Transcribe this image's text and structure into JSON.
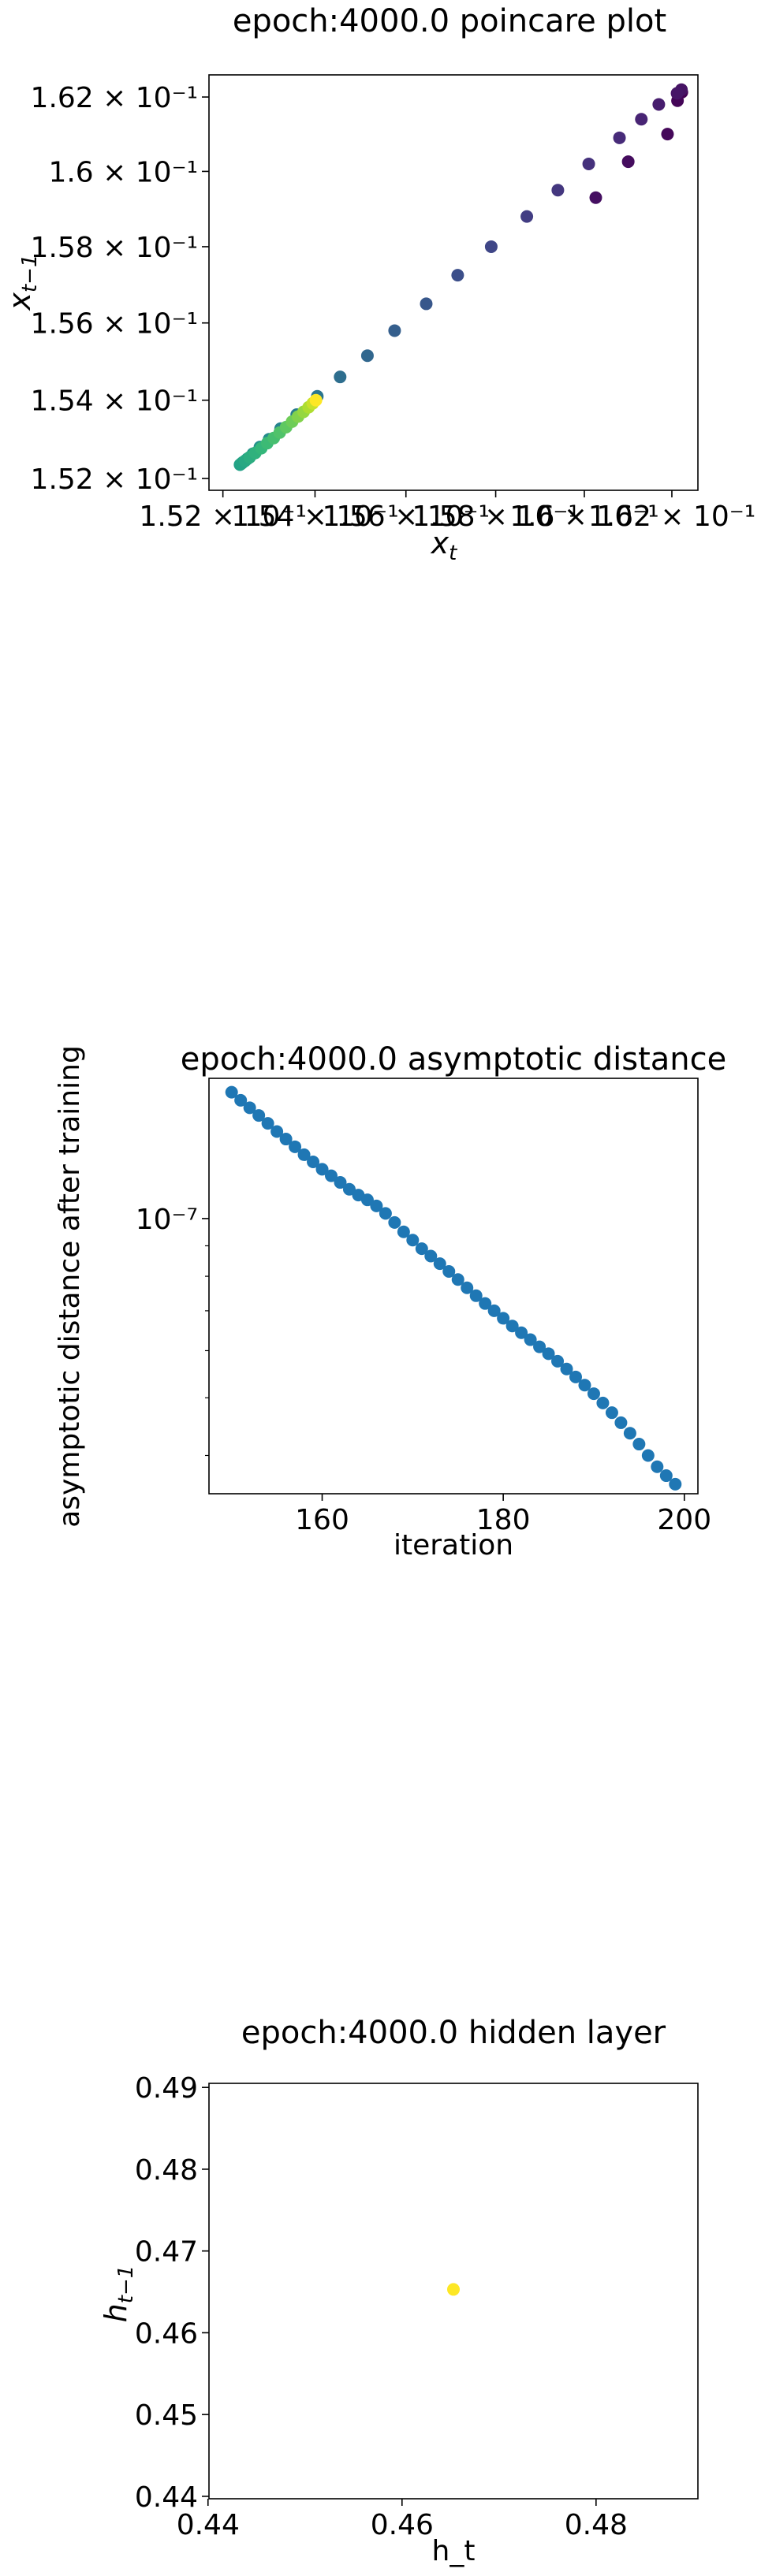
{
  "chart_data": [
    {
      "type": "scatter",
      "title": "epoch:4000.0 poincare plot",
      "xlabel": "x",
      "xlabel_sub": "t",
      "ylabel": "x",
      "ylabel_sub": "t−1",
      "scale": "log",
      "colormap": "viridis (color encodes iteration order: early = dark purple, late = yellow)",
      "xlim": [
        0.1517,
        0.1626
      ],
      "ylim": [
        0.1517,
        0.1626
      ],
      "yticks": [
        0.152,
        0.154,
        0.156,
        0.158,
        0.16,
        0.162
      ],
      "ytick_labels": [
        "1.52 × 10⁻¹",
        "1.54 × 10⁻¹",
        "1.56 × 10⁻¹",
        "1.58 × 10⁻¹",
        "1.6 × 10⁻¹",
        "1.62 × 10⁻¹"
      ],
      "xticks": [
        0.152,
        0.154,
        0.156,
        0.158,
        0.16,
        0.162
      ],
      "xtick_labels": [
        "1.52 × 10⁻¹",
        "1.54 × 10⁻¹",
        "1.56 × 10⁻¹",
        "1.58 × 10⁻¹",
        "1.6 × 10⁻¹",
        "1.62 × 10⁻¹"
      ],
      "points": [
        {
          "x": 0.16223,
          "y": 0.16213,
          "c": 0.0
        },
        {
          "x": 0.16213,
          "y": 0.1619,
          "c": 0.01
        },
        {
          "x": 0.1619,
          "y": 0.161,
          "c": 0.02
        },
        {
          "x": 0.161,
          "y": 0.16026,
          "c": 0.03
        },
        {
          "x": 0.16026,
          "y": 0.1593,
          "c": 0.04
        },
        {
          "x": 0.16222,
          "y": 0.1622,
          "c": 0.05
        },
        {
          "x": 0.16212,
          "y": 0.1621,
          "c": 0.06
        },
        {
          "x": 0.1617,
          "y": 0.1618,
          "c": 0.08
        },
        {
          "x": 0.1613,
          "y": 0.1614,
          "c": 0.1
        },
        {
          "x": 0.1608,
          "y": 0.1609,
          "c": 0.12
        },
        {
          "x": 0.1601,
          "y": 0.1602,
          "c": 0.14
        },
        {
          "x": 0.1594,
          "y": 0.1595,
          "c": 0.16
        },
        {
          "x": 0.1587,
          "y": 0.1588,
          "c": 0.18
        },
        {
          "x": 0.1579,
          "y": 0.158,
          "c": 0.21
        },
        {
          "x": 0.15715,
          "y": 0.15725,
          "c": 0.24
        },
        {
          "x": 0.15645,
          "y": 0.1565,
          "c": 0.27
        },
        {
          "x": 0.15575,
          "y": 0.1558,
          "c": 0.3
        },
        {
          "x": 0.15515,
          "y": 0.15515,
          "c": 0.33
        },
        {
          "x": 0.15455,
          "y": 0.1546,
          "c": 0.36
        },
        {
          "x": 0.15405,
          "y": 0.1541,
          "c": 0.39
        },
        {
          "x": 0.1536,
          "y": 0.15363,
          "c": 0.42
        },
        {
          "x": 0.15325,
          "y": 0.15327,
          "c": 0.45
        },
        {
          "x": 0.153,
          "y": 0.153,
          "c": 0.48
        },
        {
          "x": 0.1528,
          "y": 0.1528,
          "c": 0.5
        },
        {
          "x": 0.15265,
          "y": 0.15263,
          "c": 0.52
        },
        {
          "x": 0.15253,
          "y": 0.1525,
          "c": 0.54
        },
        {
          "x": 0.15243,
          "y": 0.15241,
          "c": 0.56
        },
        {
          "x": 0.15237,
          "y": 0.15235,
          "c": 0.57
        },
        {
          "x": 0.1524,
          "y": 0.15238,
          "c": 0.58
        },
        {
          "x": 0.15248,
          "y": 0.15245,
          "c": 0.6
        },
        {
          "x": 0.15258,
          "y": 0.15254,
          "c": 0.62
        },
        {
          "x": 0.1527,
          "y": 0.15265,
          "c": 0.64
        },
        {
          "x": 0.15283,
          "y": 0.15277,
          "c": 0.66
        },
        {
          "x": 0.15296,
          "y": 0.1529,
          "c": 0.68
        },
        {
          "x": 0.1531,
          "y": 0.15303,
          "c": 0.7
        },
        {
          "x": 0.15323,
          "y": 0.15317,
          "c": 0.72
        },
        {
          "x": 0.15337,
          "y": 0.15331,
          "c": 0.75
        },
        {
          "x": 0.1535,
          "y": 0.15345,
          "c": 0.78
        },
        {
          "x": 0.15363,
          "y": 0.15358,
          "c": 0.81
        },
        {
          "x": 0.15375,
          "y": 0.1537,
          "c": 0.84
        },
        {
          "x": 0.15386,
          "y": 0.15382,
          "c": 0.88
        },
        {
          "x": 0.15395,
          "y": 0.15392,
          "c": 0.92
        },
        {
          "x": 0.15402,
          "y": 0.154,
          "c": 1.0
        }
      ]
    },
    {
      "type": "scatter",
      "title": "epoch:4000.0 asymptotic distance",
      "xlabel": "iteration",
      "ylabel": "asymptotic distance after training",
      "yscale": "log",
      "xlim": [
        147.5,
        201.5
      ],
      "xticks": [
        160,
        180,
        200
      ],
      "ylim": [
        3.45e-08,
        1.72e-07
      ],
      "yticks": [
        1e-07
      ],
      "ytick_labels": [
        "10⁻⁷"
      ],
      "color": "#1f77b4",
      "x": [
        150,
        151,
        152,
        153,
        154,
        155,
        156,
        157,
        158,
        159,
        160,
        161,
        162,
        163,
        164,
        165,
        166,
        167,
        168,
        169,
        170,
        171,
        172,
        173,
        174,
        175,
        176,
        177,
        178,
        179,
        180,
        181,
        182,
        183,
        184,
        185,
        186,
        187,
        188,
        189,
        190,
        191,
        192,
        193,
        194,
        195,
        196,
        197,
        198,
        199
      ],
      "y": [
        1.63e-07,
        1.58e-07,
        1.535e-07,
        1.49e-07,
        1.445e-07,
        1.4e-07,
        1.36e-07,
        1.32e-07,
        1.28e-07,
        1.245e-07,
        1.21e-07,
        1.18e-07,
        1.15e-07,
        1.12e-07,
        1.095e-07,
        1.075e-07,
        1.05e-07,
        1.02e-07,
        9.85e-08,
        9.5e-08,
        9.2e-08,
        8.9e-08,
        8.65e-08,
        8.4e-08,
        8.15e-08,
        7.9e-08,
        7.65e-08,
        7.42e-08,
        7.2e-08,
        7e-08,
        6.8e-08,
        6.6e-08,
        6.43e-08,
        6.26e-08,
        6.09e-08,
        5.93e-08,
        5.76e-08,
        5.59e-08,
        5.42e-08,
        5.25e-08,
        5.08e-08,
        4.9e-08,
        4.72e-08,
        4.54e-08,
        4.36e-08,
        4.18e-08,
        4e-08,
        3.83e-08,
        3.7e-08,
        3.58e-08
      ]
    },
    {
      "type": "scatter",
      "title": "epoch:4000.0 hidden layer",
      "xlabel": "h_t",
      "ylabel": "h",
      "ylabel_sub": "t−1",
      "xlim": [
        0.4401,
        0.4905
      ],
      "ylim": [
        0.4397,
        0.4905
      ],
      "xticks": [
        0.44,
        0.46,
        0.48
      ],
      "yticks": [
        0.44,
        0.45,
        0.46,
        0.47,
        0.48,
        0.49
      ],
      "color": "#fde725",
      "points": [
        {
          "x": 0.4653,
          "y": 0.4653
        }
      ]
    }
  ]
}
